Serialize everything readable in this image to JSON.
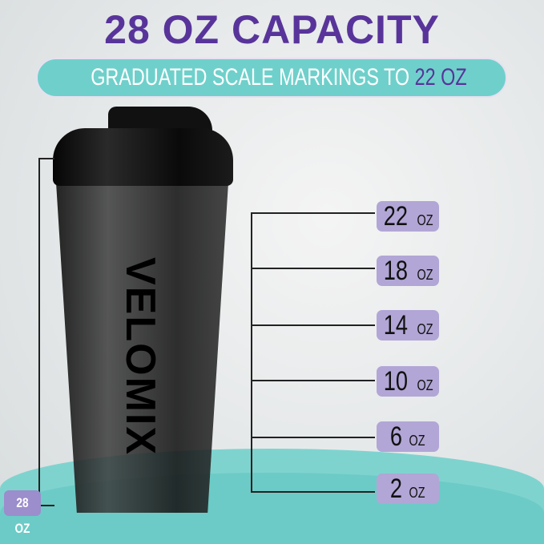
{
  "header": {
    "title": "28 OZ CAPACITY",
    "subtitle_prefix": "GRADUATED SCALE MARKINGS TO",
    "subtitle_highlight": "22 OZ"
  },
  "product": {
    "brand": "VELOMIX",
    "capacity_label": "28 OZ"
  },
  "markings": [
    {
      "value": "22",
      "unit": "OZ"
    },
    {
      "value": "18",
      "unit": "OZ"
    },
    {
      "value": "14",
      "unit": "OZ"
    },
    {
      "value": "10",
      "unit": "OZ"
    },
    {
      "value": "6",
      "unit": "OZ"
    },
    {
      "value": "2",
      "unit": "OZ"
    }
  ],
  "colors": {
    "purple": "#58349a",
    "teal": "#6fd0cb",
    "label_bg": "#b2a6d6"
  }
}
